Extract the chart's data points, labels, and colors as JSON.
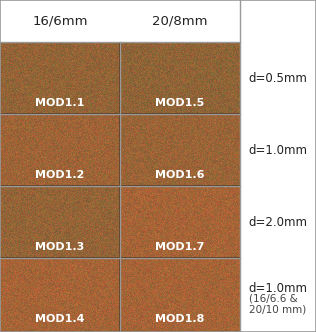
{
  "header_labels": [
    "16/6mm",
    "20/8mm"
  ],
  "row_labels": [
    "d=0.5mm",
    "d=1.0mm",
    "d=2.0mm",
    "d=1.0mm"
  ],
  "row_label_extra": [
    "",
    "",
    "",
    "(16/6.6 &\n20/10 mm)"
  ],
  "mod_labels": [
    [
      "MOD1.1",
      "MOD1.5"
    ],
    [
      "MOD1.2",
      "MOD1.6"
    ],
    [
      "MOD1.3",
      "MOD1.7"
    ],
    [
      "MOD1.4",
      "MOD1.8"
    ]
  ],
  "header_bg": "#ffffff",
  "right_bg": "#ffffff",
  "border_color": "#999999",
  "header_text_color": "#222222",
  "mod_text_color": "#ffffff",
  "row_label_color": "#222222",
  "extra_label_color": "#444444",
  "header_fontsize": 9.5,
  "mod_fontsize": 8.0,
  "row_label_fontsize": 8.5,
  "extra_fontsize": 7.5,
  "fig_width": 3.16,
  "fig_height": 3.32,
  "dpi": 100,
  "n_rows": 4,
  "copper_base": [
    155,
    100,
    55
  ],
  "copper_noise": 25,
  "copper_dark": [
    90,
    55,
    25
  ]
}
